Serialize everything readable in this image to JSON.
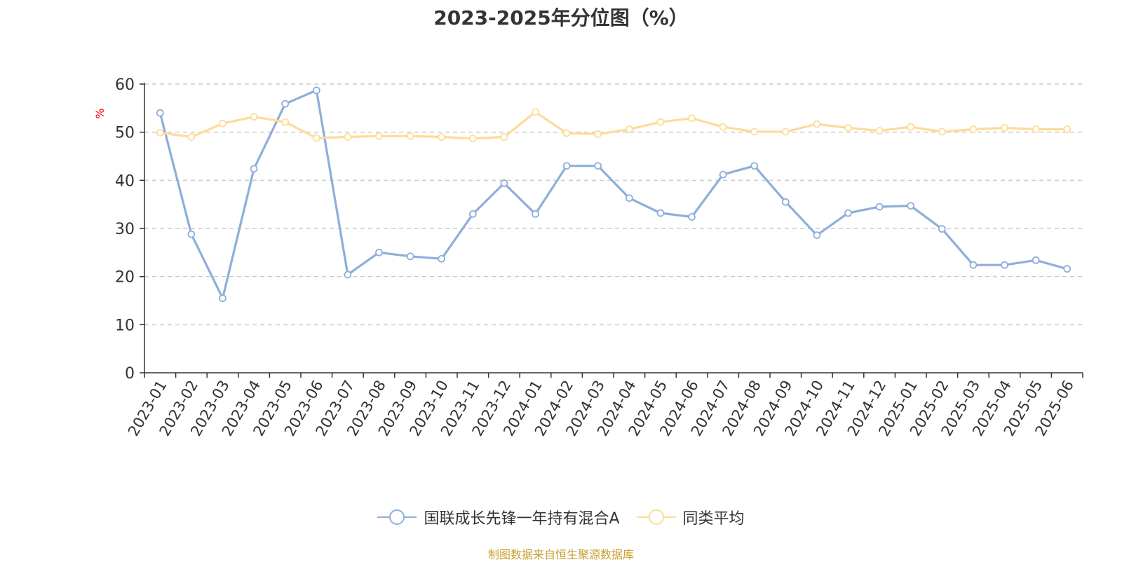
{
  "colors": {
    "series1": "#8eaedb",
    "series2": "#fddc99",
    "axis": "#333333",
    "grid": "#cccccc",
    "ylabel": "#ff0000",
    "source": "#c8a030"
  },
  "chart_data": {
    "type": "line",
    "title": "2023-2025年分位图（%）",
    "ylabel": "%",
    "xlabel": "",
    "ylim": [
      0,
      60
    ],
    "yticks": [
      0,
      10,
      20,
      30,
      40,
      50,
      60
    ],
    "grid": "horizontal-dashed",
    "legend": "bottom-center",
    "categories": [
      "2023-01",
      "2023-02",
      "2023-03",
      "2023-04",
      "2023-05",
      "2023-06",
      "2023-07",
      "2023-08",
      "2023-09",
      "2023-10",
      "2023-11",
      "2023-12",
      "2024-01",
      "2024-02",
      "2024-03",
      "2024-04",
      "2024-05",
      "2024-06",
      "2024-07",
      "2024-08",
      "2024-09",
      "2024-10",
      "2024-11",
      "2024-12",
      "2025-01",
      "2025-02",
      "2025-03",
      "2025-04",
      "2025-05",
      "2025-06"
    ],
    "series": [
      {
        "name": "国联成长先锋一年持有混合A",
        "values": [
          54.0,
          28.8,
          15.5,
          42.4,
          55.9,
          58.7,
          20.4,
          25.0,
          24.2,
          23.7,
          33.0,
          39.4,
          33.0,
          43.0,
          43.0,
          36.3,
          33.2,
          32.4,
          41.2,
          43.0,
          35.5,
          28.6,
          33.2,
          34.5,
          34.7,
          29.9,
          22.4,
          22.4,
          23.4,
          21.6
        ]
      },
      {
        "name": "同类平均",
        "values": [
          49.9,
          49.0,
          51.8,
          53.2,
          52.1,
          48.8,
          49.0,
          49.2,
          49.2,
          49.0,
          48.7,
          49.0,
          54.2,
          49.8,
          49.6,
          50.6,
          52.1,
          52.9,
          51.1,
          50.1,
          50.1,
          51.7,
          50.9,
          50.3,
          51.1,
          50.1,
          50.6,
          50.9,
          50.6,
          50.6
        ]
      }
    ]
  },
  "source_text": "制图数据来自恒生聚源数据库"
}
